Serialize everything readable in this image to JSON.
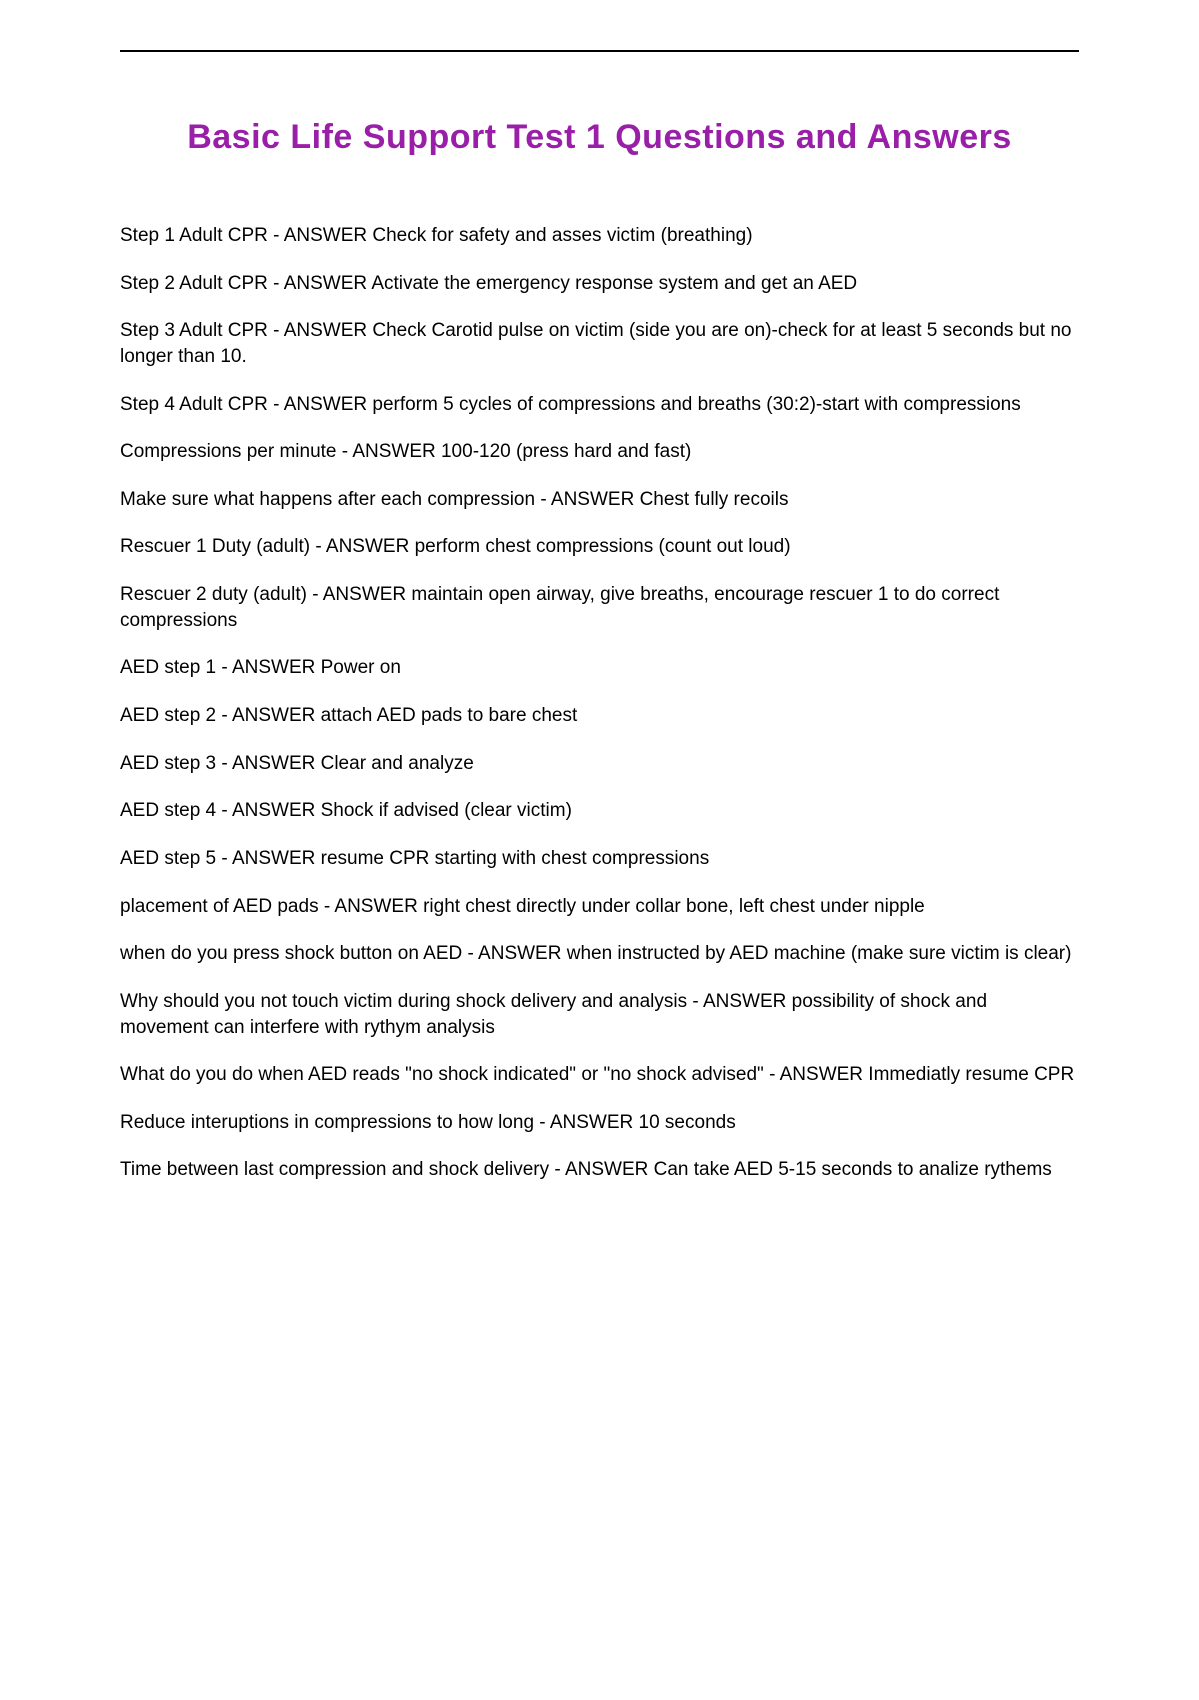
{
  "colors": {
    "title": "#9a1fa8",
    "text": "#000000",
    "rule": "#000000",
    "background": "#ffffff"
  },
  "typography": {
    "title_fontsize": 34,
    "title_fontweight": 900,
    "body_fontsize": 19,
    "body_lineheight": 1.35
  },
  "title": "Basic Life Support Test 1 Questions and Answers",
  "items": [
    "Step 1 Adult CPR - ANSWER Check for safety and asses victim (breathing)",
    "Step 2 Adult CPR - ANSWER Activate the emergency response system and get an AED",
    "Step 3 Adult CPR - ANSWER Check Carotid pulse on victim (side you are on)-check for at least 5 seconds but no longer than 10.",
    "Step 4 Adult CPR - ANSWER perform 5 cycles of compressions and breaths (30:2)-start with compressions",
    "Compressions per minute - ANSWER 100-120 (press hard and fast)",
    "Make sure what happens after each compression - ANSWER Chest fully recoils",
    "Rescuer 1 Duty (adult) - ANSWER perform chest compressions (count out loud)",
    "Rescuer 2 duty (adult) - ANSWER maintain open airway, give breaths, encourage rescuer 1 to do correct compressions",
    "AED step 1 - ANSWER Power on",
    "AED step 2 - ANSWER attach AED pads to bare chest",
    "AED step 3 - ANSWER Clear and analyze",
    "AED step 4 - ANSWER Shock if advised (clear victim)",
    "AED step 5 - ANSWER resume CPR starting with chest compressions",
    "placement of AED pads - ANSWER right chest directly under collar bone, left chest under nipple",
    "when do you press shock button on AED - ANSWER when instructed by AED machine (make sure victim is clear)",
    "Why should you not touch victim during shock delivery and analysis - ANSWER possibility of shock and movement can interfere with rythym analysis",
    "What do you do when AED reads \"no shock indicated\" or \"no shock advised\" - ANSWER Immediatly resume CPR",
    "Reduce interuptions in compressions to how long - ANSWER 10 seconds",
    "Time between last compression and shock delivery - ANSWER Can take AED 5-15 seconds to analize rythems"
  ]
}
